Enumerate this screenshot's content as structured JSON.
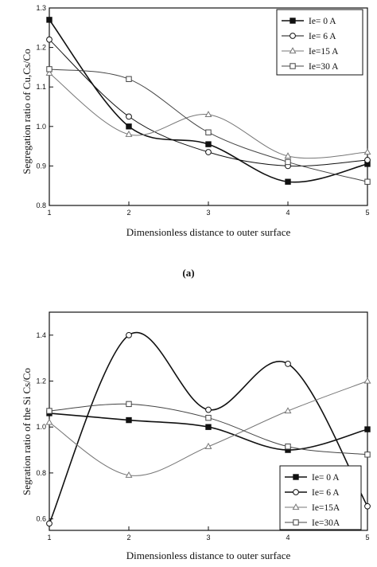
{
  "caption_a": "(a)",
  "chart_data": [
    {
      "type": "line",
      "title": "",
      "xlabel": "Dimensionless distance to outer surface",
      "ylabel": "Segregation  ratio of Cu,Cs/Co",
      "x": [
        1,
        2,
        3,
        4,
        5
      ],
      "xlim": [
        1,
        5
      ],
      "ylim": [
        0.8,
        1.3
      ],
      "xticks": [
        "1",
        "2",
        "3",
        "4",
        "5"
      ],
      "yticks": [
        "0.8",
        "0.9",
        "1.0",
        "1.1",
        "1.2",
        "1.3"
      ],
      "grid": false,
      "legend_position": "top-right",
      "series": [
        {
          "name": "Ie=  0 A",
          "marker": "filled-square",
          "color": "#111111",
          "width": 1.6,
          "values": [
            1.27,
            1.0,
            0.955,
            0.86,
            0.905
          ]
        },
        {
          "name": "Ie=  6 A",
          "marker": "open-circle",
          "color": "#111111",
          "width": 1.0,
          "values": [
            1.22,
            1.025,
            0.935,
            0.9,
            0.915
          ]
        },
        {
          "name": "Ie=15 A",
          "marker": "open-triangle",
          "color": "#777777",
          "width": 1.0,
          "values": [
            1.135,
            0.98,
            1.03,
            0.925,
            0.935
          ]
        },
        {
          "name": "Ie=30 A",
          "marker": "open-square",
          "color": "#444444",
          "width": 1.0,
          "values": [
            1.145,
            1.12,
            0.985,
            0.91,
            0.86
          ]
        }
      ]
    },
    {
      "type": "line",
      "title": "",
      "xlabel": "Dimensionless distance to outer surface",
      "ylabel": "Segration ratio of the Si  Cs/Co",
      "x": [
        1,
        2,
        3,
        4,
        5
      ],
      "xlim": [
        1,
        5
      ],
      "ylim": [
        0.55,
        1.5
      ],
      "xticks": [
        "1",
        "2",
        "3",
        "4",
        "5"
      ],
      "yticks": [
        "0.6",
        "0.8",
        "1.0",
        "1.2",
        "1.4"
      ],
      "grid": false,
      "legend_position": "bottom-right",
      "series": [
        {
          "name": "Ie= 0 A",
          "marker": "filled-square",
          "color": "#111111",
          "width": 1.6,
          "values": [
            1.06,
            1.03,
            1.0,
            0.9,
            0.99
          ]
        },
        {
          "name": "Ie= 6 A",
          "marker": "open-circle",
          "color": "#111111",
          "width": 1.6,
          "values": [
            0.58,
            1.4,
            1.075,
            1.275,
            0.655
          ]
        },
        {
          "name": "Ie=15A",
          "marker": "open-triangle",
          "color": "#777777",
          "width": 1.0,
          "values": [
            1.02,
            0.79,
            0.915,
            1.07,
            1.2
          ]
        },
        {
          "name": "Ie=30A",
          "marker": "open-square",
          "color": "#444444",
          "width": 1.0,
          "values": [
            1.07,
            1.1,
            1.04,
            0.915,
            0.88
          ]
        }
      ]
    }
  ]
}
